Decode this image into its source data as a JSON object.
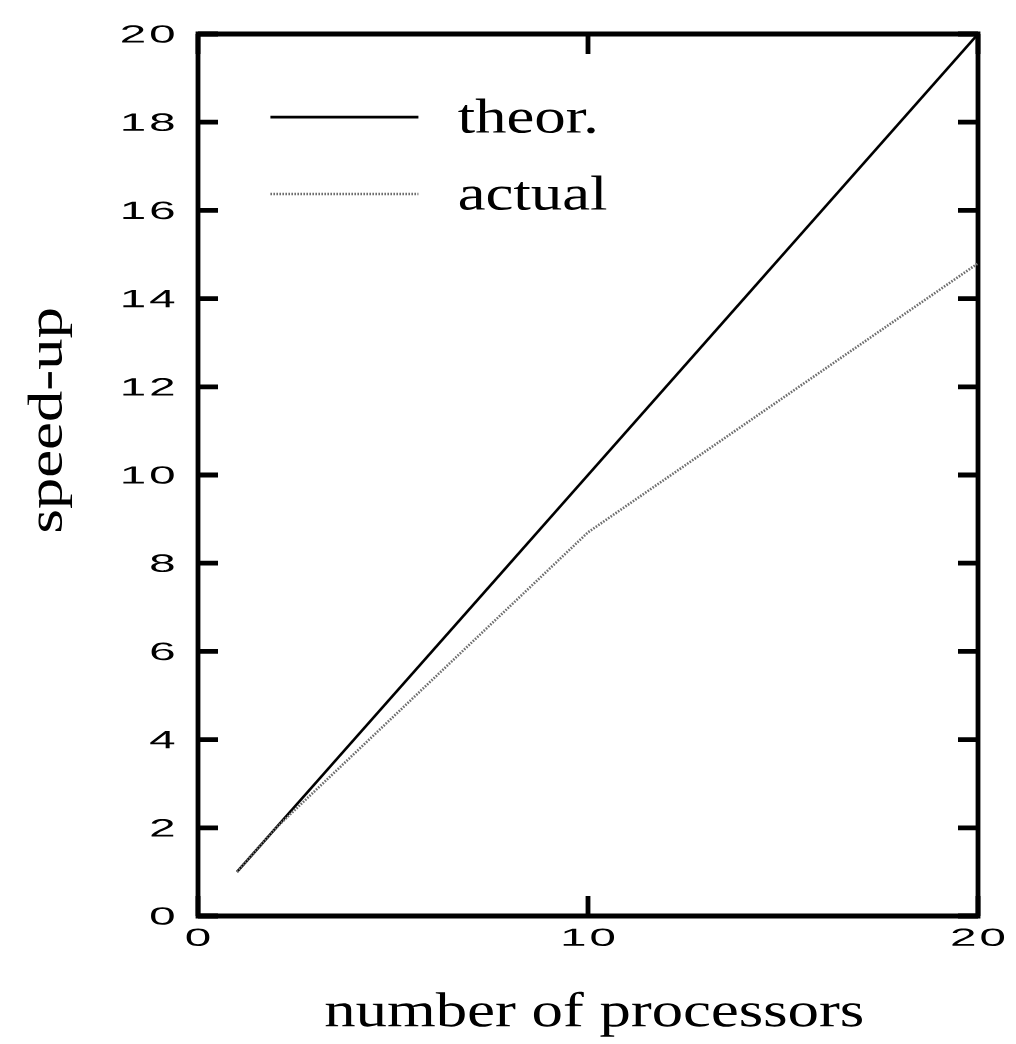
{
  "chart_data": {
    "type": "line",
    "xlabel": "number of processors",
    "ylabel": "speed-up",
    "xlim": [
      0,
      20
    ],
    "ylim": [
      0,
      20
    ],
    "xticks": [
      0,
      10,
      20
    ],
    "yticks": [
      0,
      2,
      4,
      6,
      8,
      10,
      12,
      14,
      16,
      18,
      20
    ],
    "legend": "top left",
    "series": [
      {
        "name": "theor.",
        "color": "#000000",
        "line_style": "solid",
        "x": [
          1,
          20
        ],
        "values": [
          1,
          20
        ]
      },
      {
        "name": "actual",
        "color": "#6e6e6e",
        "line_style": "dotted",
        "x": [
          1,
          2,
          10,
          20
        ],
        "values": [
          1,
          2,
          8.7,
          14.8
        ]
      }
    ]
  }
}
